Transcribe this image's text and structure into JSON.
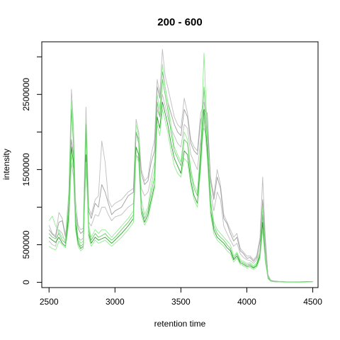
{
  "chart_data": {
    "type": "line",
    "title": "200 - 600",
    "xlabel": "retention time",
    "ylabel": "intensity",
    "xlim": [
      2445,
      4540
    ],
    "ylim": [
      -70000,
      3200000
    ],
    "xticks": [
      2500,
      3000,
      3500,
      4000,
      4500
    ],
    "yticks": [
      0,
      500000,
      1000000,
      1500000,
      2000000,
      2500000,
      3000000
    ],
    "ytick_labels": [
      "0",
      "500000",
      "",
      "1500000",
      "",
      "2500000",
      ""
    ],
    "colors": {
      "gray": "#BEBEBE",
      "gray_dark": "#A0A0A0",
      "green_light": "#90EE90",
      "green_mid": "#66CD66",
      "green_dark": "#2E9E2E"
    },
    "x": [
      2500,
      2525,
      2550,
      2575,
      2600,
      2625,
      2650,
      2670,
      2685,
      2700,
      2720,
      2740,
      2760,
      2780,
      2790,
      2800,
      2820,
      2850,
      2875,
      2900,
      2925,
      2950,
      2975,
      3000,
      3050,
      3100,
      3140,
      3160,
      3180,
      3200,
      3225,
      3250,
      3275,
      3300,
      3320,
      3340,
      3360,
      3380,
      3400,
      3425,
      3450,
      3475,
      3500,
      3525,
      3550,
      3575,
      3600,
      3625,
      3650,
      3675,
      3700,
      3725,
      3750,
      3775,
      3800,
      3825,
      3850,
      3875,
      3900,
      3925,
      3950,
      3975,
      4000,
      4025,
      4050,
      4075,
      4100,
      4120,
      4140,
      4160,
      4180,
      4200,
      4250,
      4300,
      4350,
      4400,
      4450,
      4500
    ],
    "series": [
      {
        "color": "gray",
        "values": [
          760000,
          650000,
          620000,
          930000,
          850000,
          620000,
          1200000,
          2570000,
          2100000,
          1100000,
          760000,
          700000,
          720000,
          2330000,
          1700000,
          1000000,
          900000,
          1100000,
          1150000,
          1880000,
          1600000,
          1100000,
          1000000,
          1050000,
          1100000,
          1200000,
          1250000,
          2170000,
          2000000,
          1500000,
          1350000,
          1400000,
          1700000,
          1900000,
          2700000,
          2500000,
          3100000,
          2750000,
          2600000,
          2400000,
          2200000,
          2100000,
          2050000,
          2450000,
          2250000,
          1900000,
          1800000,
          1750000,
          2250000,
          2400000,
          2050000,
          1400000,
          1150000,
          1500000,
          1300000,
          900000,
          800000,
          700000,
          600000,
          650000,
          450000,
          400000,
          350000,
          350000,
          300000,
          350000,
          600000,
          1400000,
          600000,
          100000,
          30000,
          20000,
          10000,
          5000,
          5000,
          5000,
          8000,
          12000
        ]
      },
      {
        "color": "gray_dark",
        "values": [
          700000,
          640000,
          600000,
          800000,
          820000,
          600000,
          1050000,
          1900000,
          1700000,
          950000,
          720000,
          650000,
          680000,
          2000000,
          1500000,
          950000,
          850000,
          1050000,
          1000000,
          1300000,
          1200000,
          1050000,
          900000,
          950000,
          1000000,
          1150000,
          1200000,
          2000000,
          1900000,
          1450000,
          1300000,
          1350000,
          1600000,
          1750000,
          2600000,
          2450000,
          2800000,
          2600000,
          2400000,
          2250000,
          2100000,
          2000000,
          1950000,
          2300000,
          2200000,
          1850000,
          1750000,
          1700000,
          2150000,
          2300000,
          2250000,
          1350000,
          1100000,
          1400000,
          1250000,
          850000,
          780000,
          650000,
          550000,
          600000,
          420000,
          380000,
          320000,
          330000,
          280000,
          330000,
          550000,
          1100000,
          550000,
          90000,
          28000,
          18000,
          9000,
          5000,
          5000,
          5000,
          7000,
          10000
        ]
      },
      {
        "color": "gray",
        "values": [
          550000,
          500000,
          480000,
          700000,
          650000,
          520000,
          800000,
          1600000,
          1400000,
          800000,
          600000,
          560000,
          590000,
          1500000,
          1200000,
          800000,
          750000,
          900000,
          880000,
          1000000,
          1000000,
          900000,
          820000,
          870000,
          900000,
          1000000,
          1050000,
          1700000,
          1650000,
          1250000,
          1150000,
          1200000,
          1400000,
          1600000,
          2300000,
          2200000,
          2500000,
          2350000,
          2200000,
          2050000,
          1950000,
          1850000,
          1800000,
          2100000,
          2050000,
          1700000,
          1600000,
          1500000,
          1900000,
          2050000,
          1900000,
          1200000,
          950000,
          1200000,
          1100000,
          750000,
          650000,
          560000,
          480000,
          520000,
          380000,
          330000,
          300000,
          290000,
          250000,
          300000,
          450000,
          900000,
          450000,
          80000,
          25000,
          15000,
          8000,
          5000,
          5000,
          4000,
          6000,
          9000
        ]
      },
      {
        "color": "green_light",
        "values": [
          820000,
          880000,
          750000,
          680000,
          600000,
          560000,
          1200000,
          2420000,
          2000000,
          900000,
          600000,
          520000,
          550000,
          2200000,
          1600000,
          750000,
          600000,
          700000,
          650000,
          700000,
          700000,
          650000,
          600000,
          650000,
          750000,
          850000,
          950000,
          2100000,
          1950000,
          1100000,
          900000,
          1000000,
          1300000,
          1500000,
          2500000,
          2300000,
          2900000,
          2600000,
          2400000,
          2100000,
          1800000,
          1700000,
          1600000,
          2000000,
          1900000,
          1500000,
          1300000,
          1200000,
          1800000,
          3050000,
          2000000,
          1100000,
          800000,
          700000,
          650000,
          600000,
          550000,
          500000,
          350000,
          400000,
          300000,
          280000,
          250000,
          260000,
          220000,
          260000,
          400000,
          1000000,
          350000,
          70000,
          20000,
          12000,
          6000,
          4000,
          4000,
          3000,
          5000,
          8000
        ]
      },
      {
        "color": "green_mid",
        "values": [
          650000,
          600000,
          580000,
          650000,
          560000,
          520000,
          1000000,
          2300000,
          1850000,
          850000,
          560000,
          480000,
          510000,
          2100000,
          1500000,
          700000,
          560000,
          650000,
          600000,
          620000,
          650000,
          600000,
          560000,
          600000,
          700000,
          800000,
          900000,
          2000000,
          1850000,
          1000000,
          850000,
          950000,
          1200000,
          1400000,
          2400000,
          2200000,
          2700000,
          2500000,
          2300000,
          2000000,
          1750000,
          1650000,
          1550000,
          1900000,
          1850000,
          1450000,
          1250000,
          1150000,
          1700000,
          2600000,
          1900000,
          1050000,
          750000,
          650000,
          600000,
          560000,
          500000,
          450000,
          320000,
          380000,
          280000,
          260000,
          230000,
          240000,
          200000,
          240000,
          380000,
          900000,
          320000,
          60000,
          18000,
          10000,
          5000,
          4000,
          4000,
          3000,
          4000,
          7000
        ]
      },
      {
        "color": "green_dark",
        "values": [
          600000,
          560000,
          530000,
          600000,
          520000,
          480000,
          900000,
          1800000,
          1600000,
          780000,
          520000,
          450000,
          480000,
          1700000,
          1300000,
          650000,
          520000,
          600000,
          560000,
          580000,
          600000,
          560000,
          520000,
          560000,
          650000,
          750000,
          850000,
          1800000,
          1700000,
          950000,
          800000,
          900000,
          1100000,
          1300000,
          2200000,
          2050000,
          2400000,
          2250000,
          2100000,
          1850000,
          1650000,
          1550000,
          1450000,
          1750000,
          1700000,
          1350000,
          1150000,
          1050000,
          1600000,
          2300000,
          1750000,
          950000,
          700000,
          600000,
          560000,
          520000,
          460000,
          420000,
          300000,
          350000,
          260000,
          240000,
          210000,
          220000,
          190000,
          220000,
          350000,
          800000,
          300000,
          55000,
          16000,
          9000,
          5000,
          3000,
          3000,
          3000,
          4000,
          6000
        ]
      },
      {
        "color": "green_light",
        "values": [
          480000,
          450000,
          430000,
          550000,
          500000,
          460000,
          800000,
          1700000,
          1500000,
          700000,
          480000,
          420000,
          450000,
          1600000,
          1200000,
          600000,
          480000,
          560000,
          520000,
          540000,
          560000,
          520000,
          480000,
          520000,
          600000,
          700000,
          800000,
          1700000,
          1600000,
          900000,
          760000,
          850000,
          1050000,
          1250000,
          2100000,
          1950000,
          2300000,
          2150000,
          2000000,
          1750000,
          1550000,
          1450000,
          1400000,
          1650000,
          1600000,
          1300000,
          1100000,
          1000000,
          1500000,
          2200000,
          1650000,
          900000,
          650000,
          560000,
          520000,
          480000,
          420000,
          380000,
          270000,
          320000,
          240000,
          220000,
          190000,
          200000,
          170000,
          200000,
          320000,
          700000,
          280000,
          50000,
          15000,
          8000,
          4000,
          3000,
          3000,
          2000,
          3000,
          5000
        ]
      }
    ]
  }
}
